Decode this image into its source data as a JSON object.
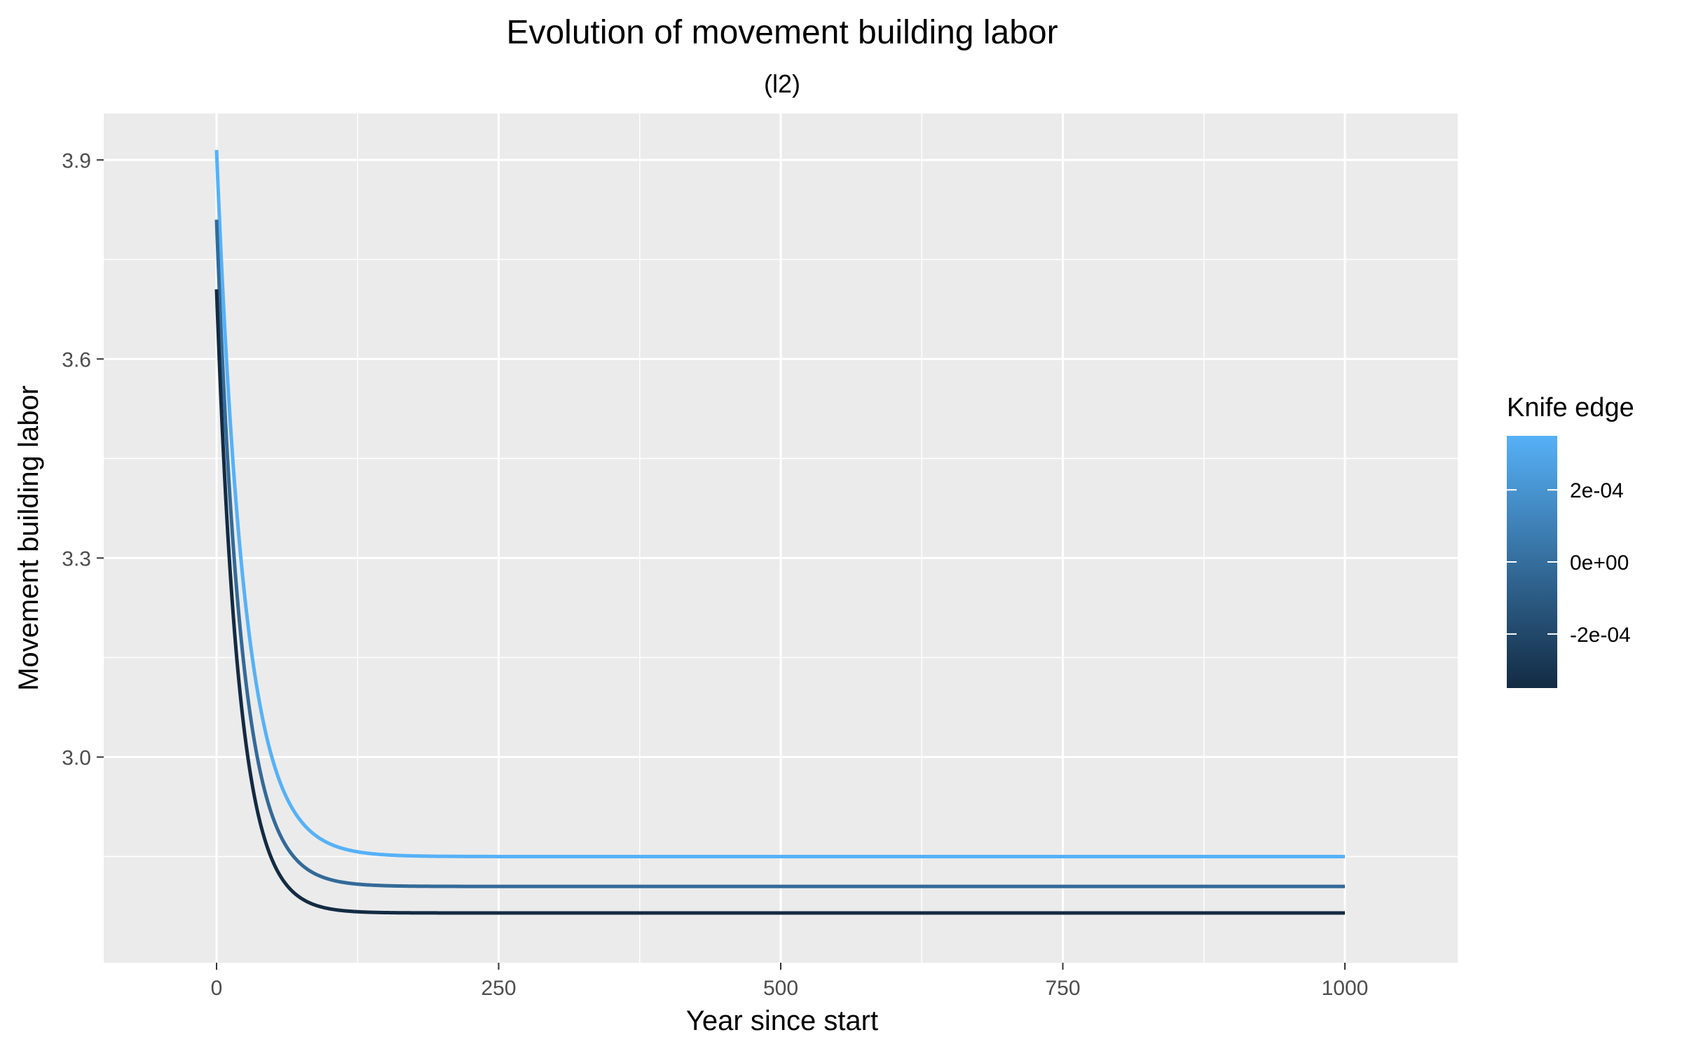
{
  "chart_data": {
    "type": "line",
    "title": "Evolution of  movement building labor",
    "subtitle": "(l2)",
    "xlabel": "Year since start",
    "ylabel": "Movement building labor",
    "xlim": [
      -100,
      1100
    ],
    "ylim": [
      2.69,
      3.97
    ],
    "x_ticks": [
      0,
      250,
      500,
      750,
      1000
    ],
    "x_tick_labels": [
      "0",
      "250",
      "500",
      "750",
      "1000"
    ],
    "y_ticks": [
      3.0,
      3.3,
      3.6,
      3.9
    ],
    "y_tick_labels": [
      "3.0",
      "3.3",
      "3.6",
      "3.9"
    ],
    "grid": true,
    "legend": {
      "title": "Knife edge",
      "type": "colorbar",
      "placement": "right",
      "range": [
        -0.00035,
        0.00035
      ],
      "ticks": [
        0.0002,
        0.0,
        -0.0002
      ],
      "tick_labels": [
        "2e-04",
        "0e+00",
        "-2e-04"
      ],
      "colors": [
        "#132B43",
        "#56B1F7"
      ]
    },
    "series": [
      {
        "knife_edge": 0.00035,
        "color": "#56B1F7",
        "start": 3.915,
        "steady": 2.85,
        "decay_years": 25
      },
      {
        "knife_edge": 0.0,
        "color": "#336A98",
        "start": 3.81,
        "steady": 2.805,
        "decay_years": 22
      },
      {
        "knife_edge": -0.00035,
        "color": "#132B43",
        "start": 3.705,
        "steady": 2.765,
        "decay_years": 20
      }
    ],
    "x_range": [
      0,
      1000
    ]
  }
}
